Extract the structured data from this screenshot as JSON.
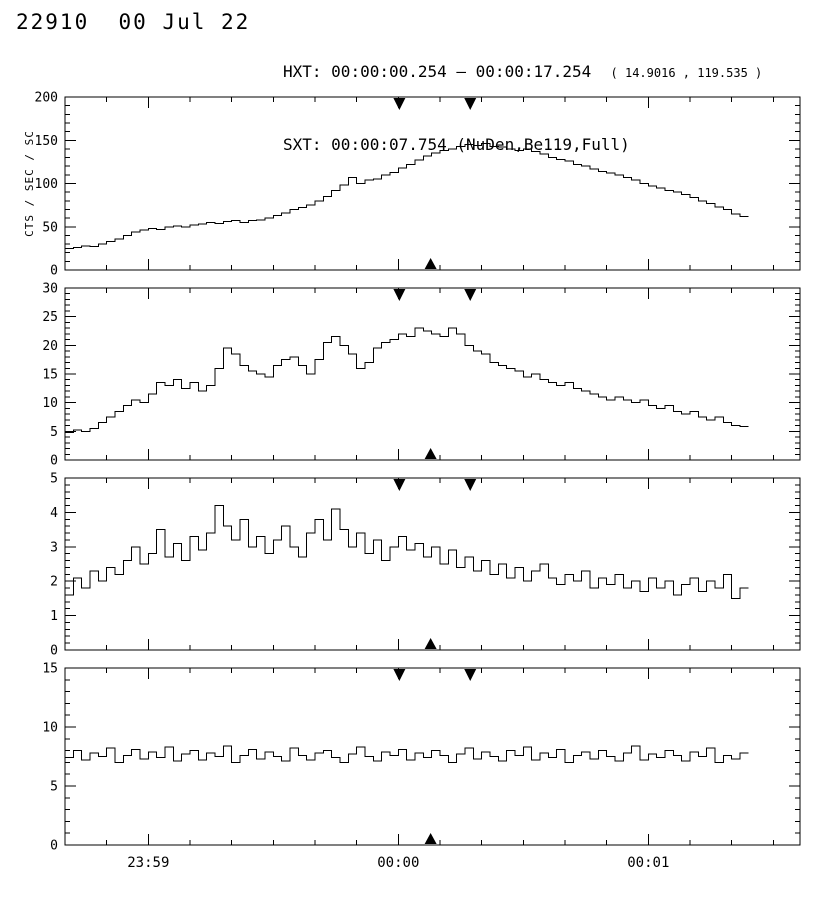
{
  "header": {
    "event_id": "22910",
    "date": "00 Jul 22",
    "hxt": {
      "label": "HXT:",
      "interval": "00:00:00.254 — 00:00:17.254",
      "coords": "( 14.9016 , 119.535 )"
    },
    "sxt": {
      "label": "SXT:",
      "value": "00:00:07.754 (NuDen,Be119,Full)"
    }
  },
  "colors": {
    "line": "#000000",
    "background": "#ffffff"
  },
  "chart_data": {
    "type": "line",
    "style": "step-histogram",
    "title": "",
    "ylabel": "CTS / SEC / SC",
    "x_units": "seconds from 23:58:40",
    "xlim": [
      0,
      176.4
    ],
    "t0": 0,
    "dt": 2,
    "x_minor_step": 10,
    "xticks": [
      {
        "t": 20,
        "label": "23:59"
      },
      {
        "t": 80,
        "label": "00:00"
      },
      {
        "t": 140,
        "label": "00:01"
      }
    ],
    "markers": {
      "hxt_start_t": 80.25,
      "hxt_end_t": 97.25,
      "sxt_t": 87.75
    },
    "panels": [
      {
        "ylabel": "CTS / SEC / SC",
        "ylim": [
          0,
          200
        ],
        "yticks": [
          0,
          50,
          100,
          150,
          200
        ],
        "y_minor_step": 10,
        "values": [
          25,
          26,
          28,
          27,
          30,
          33,
          36,
          40,
          44,
          46,
          48,
          47,
          50,
          51,
          50,
          52,
          53,
          55,
          54,
          56,
          57,
          55,
          57,
          58,
          60,
          63,
          66,
          70,
          72,
          75,
          80,
          85,
          92,
          98,
          107,
          100,
          104,
          105,
          110,
          113,
          118,
          122,
          127,
          132,
          135,
          138,
          140,
          143,
          145,
          144,
          146,
          143,
          142,
          140,
          138,
          140,
          137,
          134,
          130,
          128,
          126,
          122,
          120,
          117,
          114,
          112,
          110,
          107,
          104,
          100,
          97,
          95,
          92,
          90,
          87,
          84,
          80,
          77,
          73,
          70,
          65,
          62
        ]
      },
      {
        "ylabel": "",
        "ylim": [
          0,
          30
        ],
        "yticks": [
          0,
          5,
          10,
          15,
          20,
          25,
          30
        ],
        "y_minor_step": 1,
        "values": [
          4.8,
          5.2,
          5.0,
          5.5,
          6.5,
          7.5,
          8.5,
          9.5,
          10.5,
          10.0,
          11.5,
          13.5,
          13.0,
          14.0,
          12.5,
          13.5,
          12.0,
          13.0,
          16.0,
          19.5,
          18.5,
          16.5,
          15.5,
          15.0,
          14.5,
          16.5,
          17.5,
          18.0,
          16.5,
          15.0,
          17.5,
          20.5,
          21.5,
          20.0,
          18.5,
          16.0,
          17.0,
          19.5,
          20.5,
          21.0,
          22.0,
          21.5,
          23.0,
          22.5,
          22.0,
          21.5,
          23.0,
          22.0,
          20.0,
          19.0,
          18.5,
          17.0,
          16.5,
          16.0,
          15.5,
          14.5,
          15.0,
          14.0,
          13.5,
          13.0,
          13.5,
          12.5,
          12.0,
          11.5,
          11.0,
          10.5,
          11.0,
          10.5,
          10.0,
          10.5,
          9.5,
          9.0,
          9.5,
          8.5,
          8.0,
          8.5,
          7.5,
          7.0,
          7.5,
          6.5,
          6.0,
          5.8
        ]
      },
      {
        "ylabel": "",
        "ylim": [
          0,
          5
        ],
        "yticks": [
          0,
          1,
          2,
          3,
          4,
          5
        ],
        "y_minor_step": 0.2,
        "values": [
          1.6,
          2.1,
          1.8,
          2.3,
          2.0,
          2.4,
          2.2,
          2.6,
          3.0,
          2.5,
          2.8,
          3.5,
          2.7,
          3.1,
          2.6,
          3.3,
          2.9,
          3.4,
          4.2,
          3.6,
          3.2,
          3.8,
          3.0,
          3.3,
          2.8,
          3.2,
          3.6,
          3.0,
          2.7,
          3.4,
          3.8,
          3.2,
          4.1,
          3.5,
          3.0,
          3.4,
          2.8,
          3.2,
          2.6,
          3.0,
          3.3,
          2.9,
          3.1,
          2.7,
          3.0,
          2.5,
          2.9,
          2.4,
          2.7,
          2.3,
          2.6,
          2.2,
          2.5,
          2.1,
          2.4,
          2.0,
          2.3,
          2.5,
          2.1,
          1.9,
          2.2,
          2.0,
          2.3,
          1.8,
          2.1,
          1.9,
          2.2,
          1.8,
          2.0,
          1.7,
          2.1,
          1.8,
          2.0,
          1.6,
          1.9,
          2.1,
          1.7,
          2.0,
          1.8,
          2.2,
          1.5,
          1.8
        ]
      },
      {
        "ylabel": "",
        "ylim": [
          0,
          15
        ],
        "yticks": [
          0,
          5,
          10,
          15
        ],
        "y_minor_step": 1,
        "values": [
          7.4,
          8.0,
          7.2,
          7.8,
          7.5,
          8.2,
          7.0,
          7.6,
          8.1,
          7.3,
          7.9,
          7.4,
          8.3,
          7.1,
          7.7,
          8.0,
          7.2,
          7.8,
          7.5,
          8.4,
          7.0,
          7.6,
          8.1,
          7.3,
          7.9,
          7.5,
          7.1,
          8.2,
          7.6,
          7.2,
          7.8,
          8.0,
          7.4,
          7.0,
          7.7,
          8.3,
          7.5,
          7.1,
          7.9,
          7.6,
          8.1,
          7.2,
          7.8,
          7.4,
          8.0,
          7.6,
          7.0,
          7.7,
          8.2,
          7.3,
          7.9,
          7.5,
          7.1,
          8.0,
          7.6,
          8.3,
          7.2,
          7.8,
          7.4,
          8.1,
          7.0,
          7.6,
          7.9,
          7.3,
          8.0,
          7.5,
          7.1,
          7.8,
          8.4,
          7.2,
          7.7,
          7.4,
          8.0,
          7.6,
          7.1,
          7.9,
          7.5,
          8.2,
          7.0,
          7.6,
          7.3,
          7.8
        ]
      }
    ]
  }
}
